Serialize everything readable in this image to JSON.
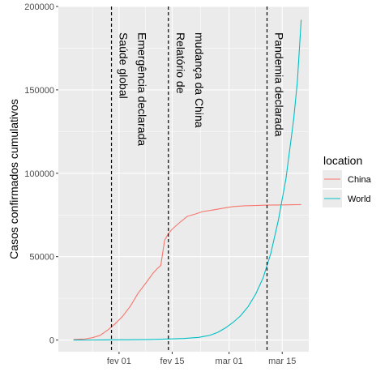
{
  "chart_data": {
    "type": "line",
    "title": "",
    "xlabel": "",
    "ylabel": "Casos confirmados cumulativos",
    "x_type": "date",
    "xlim": [
      "2020-01-16",
      "2020-03-22"
    ],
    "ylim": [
      -7000,
      200000
    ],
    "x_ticks": [
      {
        "date": "2020-02-01",
        "label": "fev 01"
      },
      {
        "date": "2020-02-15",
        "label": "fev 15"
      },
      {
        "date": "2020-03-01",
        "label": "mar 01"
      },
      {
        "date": "2020-03-15",
        "label": "mar 15"
      }
    ],
    "y_ticks": [
      {
        "value": 0,
        "label": "0"
      },
      {
        "value": 50000,
        "label": "50000"
      },
      {
        "value": 100000,
        "label": "100000"
      },
      {
        "value": 150000,
        "label": "150000"
      },
      {
        "value": 200000,
        "label": "200000"
      }
    ],
    "grid": true,
    "legend": {
      "title": "location",
      "position": "right"
    },
    "series": [
      {
        "name": "China",
        "color": "#F8766D",
        "points": [
          [
            "2020-01-20",
            300
          ],
          [
            "2020-01-22",
            550
          ],
          [
            "2020-01-23",
            650
          ],
          [
            "2020-01-25",
            1400
          ],
          [
            "2020-01-27",
            2800
          ],
          [
            "2020-01-29",
            6000
          ],
          [
            "2020-01-31",
            9800
          ],
          [
            "2020-02-02",
            14400
          ],
          [
            "2020-02-04",
            20400
          ],
          [
            "2020-02-06",
            28000
          ],
          [
            "2020-02-08",
            34000
          ],
          [
            "2020-02-10",
            40200
          ],
          [
            "2020-02-11",
            42700
          ],
          [
            "2020-02-12",
            44700
          ],
          [
            "2020-02-13",
            59800
          ],
          [
            "2020-02-14",
            63800
          ],
          [
            "2020-02-15",
            66500
          ],
          [
            "2020-02-17",
            70500
          ],
          [
            "2020-02-19",
            74200
          ],
          [
            "2020-02-21",
            75500
          ],
          [
            "2020-02-23",
            77000
          ],
          [
            "2020-02-25",
            77700
          ],
          [
            "2020-02-27",
            78500
          ],
          [
            "2020-02-29",
            79300
          ],
          [
            "2020-03-02",
            80000
          ],
          [
            "2020-03-05",
            80500
          ],
          [
            "2020-03-08",
            80700
          ],
          [
            "2020-03-11",
            80900
          ],
          [
            "2020-03-14",
            81000
          ],
          [
            "2020-03-17",
            81100
          ],
          [
            "2020-03-20",
            81250
          ]
        ]
      },
      {
        "name": "World",
        "color": "#00BFC4",
        "points": [
          [
            "2020-01-20",
            0
          ],
          [
            "2020-01-25",
            40
          ],
          [
            "2020-01-30",
            120
          ],
          [
            "2020-02-04",
            200
          ],
          [
            "2020-02-09",
            330
          ],
          [
            "2020-02-14",
            600
          ],
          [
            "2020-02-18",
            950
          ],
          [
            "2020-02-22",
            1600
          ],
          [
            "2020-02-25",
            2900
          ],
          [
            "2020-02-27",
            4600
          ],
          [
            "2020-02-29",
            7200
          ],
          [
            "2020-03-02",
            10500
          ],
          [
            "2020-03-04",
            14500
          ],
          [
            "2020-03-06",
            20000
          ],
          [
            "2020-03-08",
            27500
          ],
          [
            "2020-03-10",
            37500
          ],
          [
            "2020-03-12",
            52000
          ],
          [
            "2020-03-14",
            72000
          ],
          [
            "2020-03-16",
            97000
          ],
          [
            "2020-03-18",
            132000
          ],
          [
            "2020-03-19",
            155000
          ],
          [
            "2020-03-20",
            192000
          ]
        ]
      }
    ],
    "vlines": [
      {
        "date": "2020-01-30",
        "labels": [
          "Saúde global",
          "Emergência declarada"
        ]
      },
      {
        "date": "2020-02-14",
        "labels": [
          "Relatório de",
          "mudança da China"
        ]
      },
      {
        "date": "2020-03-11",
        "labels": [
          "Pandemia declarada"
        ]
      }
    ]
  }
}
